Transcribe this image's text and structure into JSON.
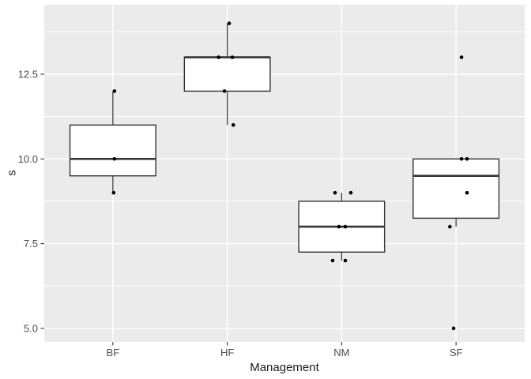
{
  "chart_data": {
    "type": "boxplot",
    "title": "",
    "xlabel": "Management",
    "ylabel": "s",
    "categories": [
      "BF",
      "HF",
      "NM",
      "SF"
    ],
    "ylim": [
      4.6,
      14.55
    ],
    "y_ticks": [
      {
        "value": 5.0,
        "label": "5.0"
      },
      {
        "value": 7.5,
        "label": "7.5"
      },
      {
        "value": 10.0,
        "label": "10.0"
      },
      {
        "value": 12.5,
        "label": "12.5"
      }
    ],
    "y_minor_ticks": [
      6.25,
      8.75,
      11.25,
      13.75
    ],
    "grid": {
      "major": true,
      "minor_horizontal": true,
      "vertical_at_categories": true
    },
    "legend": "none",
    "box_width_fraction": 0.75,
    "x_expansion": 0.6,
    "series": [
      {
        "name": "BF",
        "q1": 9.5,
        "median": 10,
        "q3": 11,
        "whisker_low": 9,
        "whisker_high": 12,
        "values": [
          9,
          10,
          12
        ],
        "points": [
          {
            "y": 12,
            "dx": 2.0
          },
          {
            "y": 10,
            "dx": 2.0
          },
          {
            "y": 9,
            "dx": 1.0
          }
        ]
      },
      {
        "name": "HF",
        "q1": 12,
        "median": 13,
        "q3": 13,
        "whisker_low": 11,
        "whisker_high": 14,
        "values": [
          11,
          12,
          13,
          13,
          14
        ],
        "points": [
          {
            "y": 14,
            "dx": 2.4
          },
          {
            "y": 13,
            "dx": -10.9
          },
          {
            "y": 13,
            "dx": 6.4
          },
          {
            "y": 12,
            "dx": -3.6
          },
          {
            "y": 11,
            "dx": 7.7
          }
        ]
      },
      {
        "name": "NM",
        "q1": 7.25,
        "median": 8,
        "q3": 8.75,
        "whisker_low": 7,
        "whisker_high": 9,
        "values": [
          7,
          7,
          8,
          8,
          9,
          9
        ],
        "points": [
          {
            "y": 9,
            "dx": -8.4
          },
          {
            "y": 9,
            "dx": 11.6
          },
          {
            "y": 8,
            "dx": -3.4
          },
          {
            "y": 8,
            "dx": 4.6
          },
          {
            "y": 7,
            "dx": -11.4
          },
          {
            "y": 7,
            "dx": 4.6
          }
        ]
      },
      {
        "name": "SF",
        "q1": 8.25,
        "median": 9.5,
        "q3": 10,
        "whisker_low": 8,
        "whisker_high": 10,
        "values": [
          5,
          8,
          9,
          10,
          10,
          13
        ],
        "points": [
          {
            "y": 13,
            "dx": 6.9
          },
          {
            "y": 10,
            "dx": 6.9
          },
          {
            "y": 10,
            "dx": 13.9
          },
          {
            "y": 9,
            "dx": 13.9
          },
          {
            "y": 8,
            "dx": -7.8
          },
          {
            "y": 5,
            "dx": -3.1
          }
        ]
      }
    ],
    "style": {
      "panel_background": "#EBEBEB",
      "grid_color": "#FFFFFF",
      "box_fill": "#FFFFFF",
      "box_stroke": "#333333",
      "point_color": "#000000",
      "tick_mark_color": "#333333",
      "tick_label_color": "#4D4D4D",
      "axis_title_color": "#1A1A1A",
      "figure_background": "#FFFFFF"
    }
  }
}
